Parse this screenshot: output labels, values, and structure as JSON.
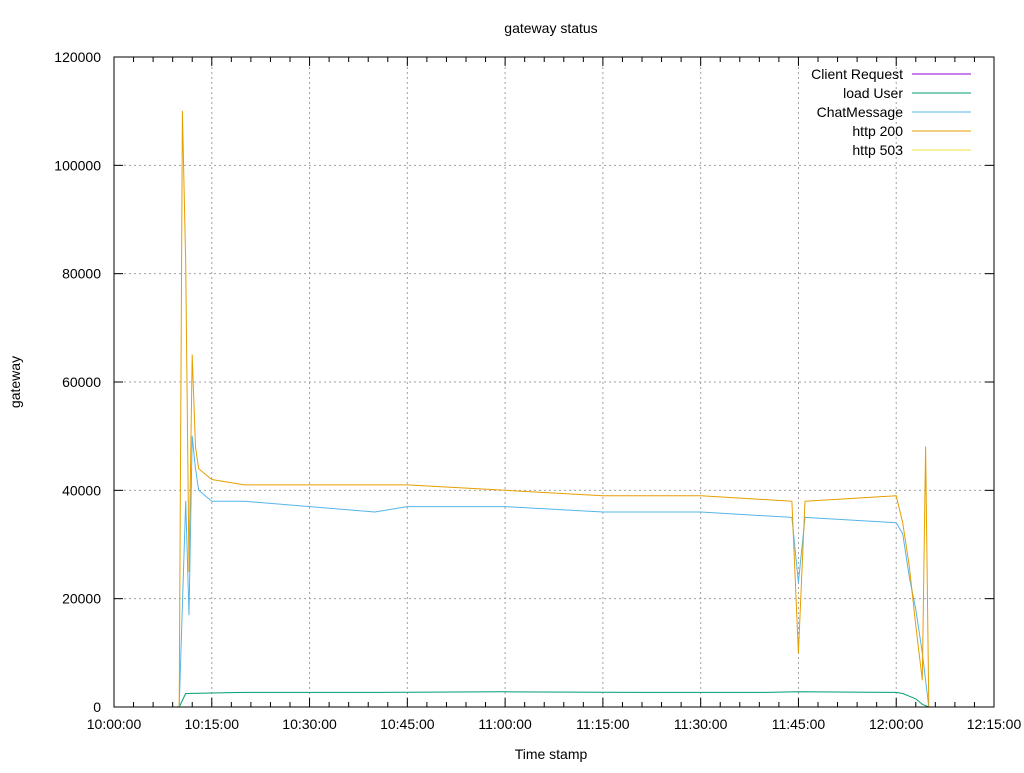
{
  "chart_data": {
    "type": "line",
    "title": "gateway status",
    "xlabel": "Time stamp",
    "ylabel": "gateway",
    "xlim": [
      "10:00:00",
      "12:15:00"
    ],
    "ylim": [
      0,
      120000
    ],
    "x_ticks": [
      "10:00:00",
      "10:15:00",
      "10:30:00",
      "10:45:00",
      "11:00:00",
      "11:15:00",
      "11:30:00",
      "11:45:00",
      "12:00:00",
      "12:15:00"
    ],
    "y_ticks": [
      0,
      20000,
      40000,
      60000,
      80000,
      100000,
      120000
    ],
    "grid": true,
    "legend_position": "top-right",
    "series": [
      {
        "name": "Client Request",
        "color": "#9400d3",
        "points": [
          [
            "10:10:00",
            0
          ],
          [
            "12:05:00",
            0
          ]
        ]
      },
      {
        "name": "load User",
        "color": "#009e73",
        "points": [
          [
            "10:10:00",
            0
          ],
          [
            "10:11:00",
            2500
          ],
          [
            "10:20:00",
            2700
          ],
          [
            "10:40:00",
            2700
          ],
          [
            "11:00:00",
            2800
          ],
          [
            "11:20:00",
            2700
          ],
          [
            "11:40:00",
            2700
          ],
          [
            "11:45:00",
            2800
          ],
          [
            "12:00:00",
            2700
          ],
          [
            "12:01:00",
            2500
          ],
          [
            "12:02:00",
            2000
          ],
          [
            "12:03:00",
            1500
          ],
          [
            "12:04:00",
            500
          ],
          [
            "12:05:00",
            0
          ]
        ]
      },
      {
        "name": "ChatMessage",
        "color": "#56b4e9",
        "points": [
          [
            "10:10:00",
            0
          ],
          [
            "10:11:00",
            38000
          ],
          [
            "10:11:30",
            17000
          ],
          [
            "10:12:00",
            50000
          ],
          [
            "10:12:30",
            44000
          ],
          [
            "10:13:00",
            40000
          ],
          [
            "10:15:00",
            38000
          ],
          [
            "10:20:00",
            38000
          ],
          [
            "10:30:00",
            37000
          ],
          [
            "10:40:00",
            36000
          ],
          [
            "10:45:00",
            37000
          ],
          [
            "11:00:00",
            37000
          ],
          [
            "11:15:00",
            36000
          ],
          [
            "11:30:00",
            36000
          ],
          [
            "11:44:00",
            35000
          ],
          [
            "11:45:00",
            23000
          ],
          [
            "11:46:00",
            35000
          ],
          [
            "12:00:00",
            34000
          ],
          [
            "12:01:00",
            32000
          ],
          [
            "12:02:00",
            24000
          ],
          [
            "12:03:00",
            18000
          ],
          [
            "12:04:00",
            10000
          ],
          [
            "12:05:00",
            0
          ]
        ]
      },
      {
        "name": "http 200",
        "color": "#e69f00",
        "points": [
          [
            "10:10:00",
            0
          ],
          [
            "10:10:30",
            110000
          ],
          [
            "10:11:00",
            82000
          ],
          [
            "10:11:30",
            25000
          ],
          [
            "10:12:00",
            65000
          ],
          [
            "10:12:30",
            48000
          ],
          [
            "10:13:00",
            44000
          ],
          [
            "10:15:00",
            42000
          ],
          [
            "10:20:00",
            41000
          ],
          [
            "10:30:00",
            41000
          ],
          [
            "10:40:00",
            41000
          ],
          [
            "10:45:00",
            41000
          ],
          [
            "11:00:00",
            40000
          ],
          [
            "11:15:00",
            39000
          ],
          [
            "11:30:00",
            39000
          ],
          [
            "11:44:00",
            38000
          ],
          [
            "11:45:00",
            10000
          ],
          [
            "11:46:00",
            38000
          ],
          [
            "12:00:00",
            39000
          ],
          [
            "12:01:00",
            34000
          ],
          [
            "12:02:00",
            26000
          ],
          [
            "12:03:00",
            15000
          ],
          [
            "12:04:00",
            5000
          ],
          [
            "12:04:30",
            48000
          ],
          [
            "12:05:00",
            0
          ]
        ]
      },
      {
        "name": "http 503",
        "color": "#f0e442",
        "points": [
          [
            "10:10:00",
            0
          ],
          [
            "12:05:00",
            0
          ]
        ]
      }
    ]
  }
}
